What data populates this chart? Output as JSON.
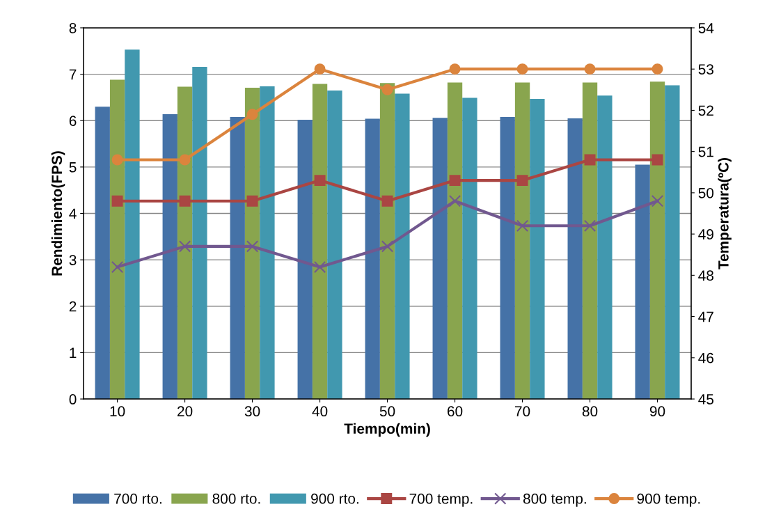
{
  "chart_data": {
    "type": "bar",
    "xlabel": "Tiempo(min)",
    "ylabel": "Rendimiento(FPS)",
    "y2label": "Temperatura(ºC)",
    "categories": [
      "10",
      "20",
      "30",
      "40",
      "50",
      "60",
      "70",
      "80",
      "90"
    ],
    "series": [
      {
        "name": "700 rto.",
        "color": "#4572a7",
        "values": [
          6.3,
          6.14,
          6.08,
          6.02,
          6.04,
          6.06,
          6.08,
          6.05,
          5.05
        ]
      },
      {
        "name": "800 rto.",
        "color": "#89a54e",
        "values": [
          6.88,
          6.73,
          6.71,
          6.79,
          6.81,
          6.82,
          6.82,
          6.82,
          6.84
        ]
      },
      {
        "name": "900 rto.",
        "color": "#4198af",
        "values": [
          7.53,
          7.16,
          6.74,
          6.65,
          6.58,
          6.49,
          6.47,
          6.54,
          6.76
        ]
      },
      {
        "name": "700 temp.",
        "type": "line",
        "axis": "y2",
        "marker": "square",
        "color": "#aa4643",
        "values": [
          49.8,
          49.8,
          49.8,
          50.3,
          49.8,
          50.3,
          50.3,
          50.8,
          50.8
        ]
      },
      {
        "name": "800 temp.",
        "type": "line",
        "axis": "y2",
        "marker": "cross",
        "color": "#71588f",
        "values": [
          48.2,
          48.7,
          48.7,
          48.2,
          48.7,
          49.8,
          49.2,
          49.2,
          49.8
        ]
      },
      {
        "name": "900 temp.",
        "type": "line",
        "axis": "y2",
        "marker": "circle",
        "color": "#db843d",
        "values": [
          50.8,
          50.8,
          51.9,
          53,
          52.5,
          53,
          53,
          53,
          53
        ]
      }
    ],
    "ylim": [
      0,
      8
    ],
    "yticks": [
      0,
      1,
      2,
      3,
      4,
      5,
      6,
      7,
      8
    ],
    "y2lim": [
      45,
      54
    ],
    "y2ticks": [
      45,
      46,
      47,
      48,
      49,
      50,
      51,
      52,
      53,
      54
    ],
    "grid": "y",
    "legend": "bottom"
  }
}
